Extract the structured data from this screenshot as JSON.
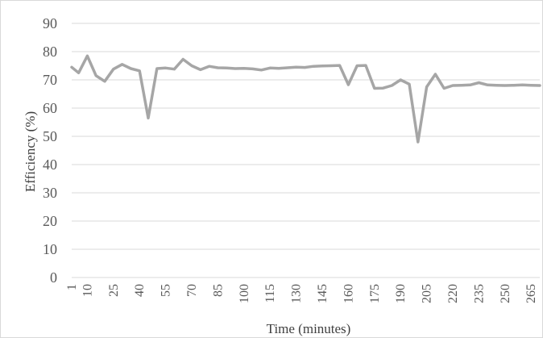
{
  "chart_data": {
    "type": "line",
    "xlabel": "Time (minutes)",
    "ylabel": "Efficiency  (%)",
    "ylim": [
      0,
      90
    ],
    "y_ticks": [
      0,
      10,
      20,
      30,
      40,
      50,
      60,
      70,
      80,
      90
    ],
    "x_tick_labels": [
      "1",
      "10",
      "25",
      "40",
      "55",
      "70",
      "85",
      "100",
      "115",
      "130",
      "145",
      "160",
      "175",
      "190",
      "205",
      "220",
      "235",
      "250",
      "265"
    ],
    "grid": true,
    "legend": "none",
    "series_color": "#a6a6a6",
    "series": [
      {
        "x": [
          1,
          5,
          10,
          15,
          20,
          25,
          30,
          35,
          40,
          45,
          50,
          55,
          60,
          65,
          70,
          75,
          80,
          85,
          90,
          95,
          100,
          105,
          110,
          115,
          120,
          125,
          130,
          135,
          140,
          145,
          150,
          155,
          160,
          165,
          170,
          175,
          180,
          185,
          190,
          195,
          200,
          205,
          210,
          215,
          220,
          225,
          230,
          235,
          240,
          245,
          250,
          255,
          260,
          265,
          270
        ],
        "values": [
          74.5,
          72.5,
          78.5,
          71.5,
          69.5,
          73.8,
          75.5,
          74.0,
          73.2,
          56.5,
          74.0,
          74.2,
          73.8,
          77.3,
          75.0,
          73.6,
          74.8,
          74.3,
          74.2,
          74.0,
          74.1,
          73.9,
          73.5,
          74.2,
          74.1,
          74.3,
          74.5,
          74.4,
          74.8,
          74.9,
          75.0,
          75.1,
          68.3,
          75.0,
          75.1,
          67.0,
          67.1,
          68.0,
          70.0,
          68.5,
          48.0,
          67.5,
          72.0,
          67.0,
          68.0,
          68.1,
          68.2,
          69.0,
          68.2,
          68.1,
          68.0,
          68.1,
          68.2,
          68.1,
          68.0
        ]
      }
    ]
  }
}
